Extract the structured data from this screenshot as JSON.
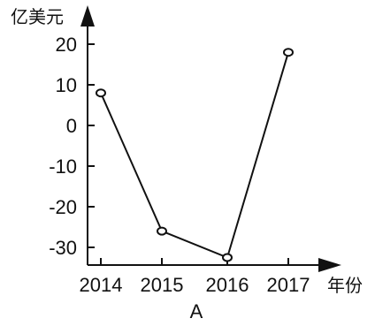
{
  "chart_data": {
    "type": "line",
    "ylabel": "亿美元",
    "xlabel": "年份",
    "caption": "A",
    "x": [
      "2014",
      "2015",
      "2016",
      "2017"
    ],
    "series": [
      {
        "values": [
          8,
          -26,
          -32.5,
          18
        ]
      }
    ],
    "yticks": [
      20,
      10,
      0,
      -10,
      -20,
      -30
    ],
    "ylim": [
      -35,
      30
    ],
    "grid": false,
    "legend": "none",
    "colors": {
      "line": "#111111",
      "axis": "#111111"
    }
  }
}
